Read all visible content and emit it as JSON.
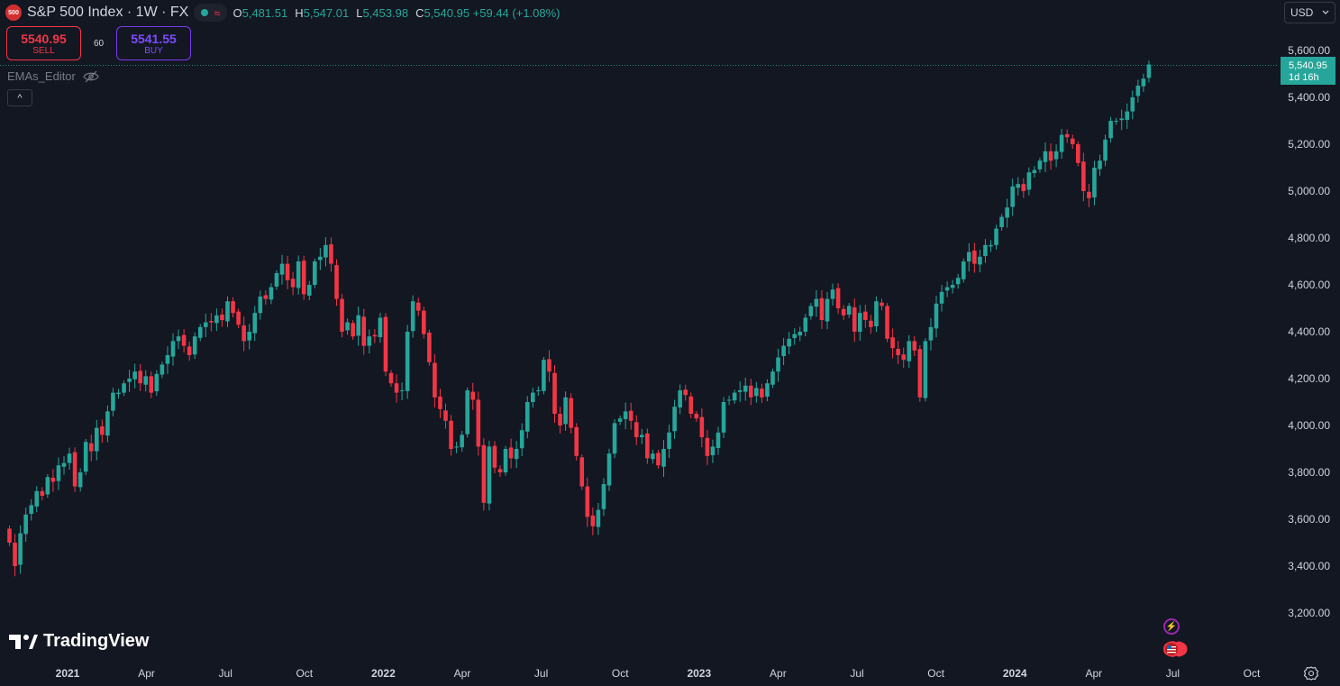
{
  "header": {
    "symbol_badge": "500",
    "title": "S&P 500 Index · 1W · FX",
    "approx_icon": "≈",
    "ohlc": [
      {
        "k": "O",
        "v": "5,481.51"
      },
      {
        "k": "H",
        "v": "5,547.01"
      },
      {
        "k": "L",
        "v": "5,453.98"
      },
      {
        "k": "C",
        "v": "5,540.95 +59.44 (+1.08%)"
      }
    ]
  },
  "trade": {
    "sell_price": "5540.95",
    "sell_label": "SELL",
    "spread": "60",
    "buy_price": "5541.55",
    "buy_label": "BUY"
  },
  "indicator": {
    "name": "EMAs_Editor",
    "collapse_icon": "^"
  },
  "currency": {
    "value": "USD",
    "icon": "chevron-down-icon"
  },
  "brand": {
    "name": "TradingView"
  },
  "colors": {
    "up": "#26a69a",
    "down": "#f23645",
    "bg": "#131722",
    "axis_text": "#d1d4dc"
  },
  "chart_data": {
    "type": "candlestick",
    "title": "S&P 500 Index",
    "interval": "1W",
    "ylim": [
      3100,
      5690
    ],
    "y_ticks": [
      "5,600.00",
      "5,400.00",
      "5,200.00",
      "5,000.00",
      "4,800.00",
      "4,600.00",
      "4,400.00",
      "4,200.00",
      "4,000.00",
      "3,800.00",
      "3,600.00",
      "3,400.00",
      "3,200.00"
    ],
    "x_ticks": [
      "2021",
      "Apr",
      "Jul",
      "Oct",
      "2022",
      "Apr",
      "Jul",
      "Oct",
      "2023",
      "Apr",
      "Jul",
      "Oct",
      "2024",
      "Apr",
      "Jul",
      "Oct"
    ],
    "last_price": "5,540.95",
    "countdown": "1d 16h",
    "closes": [
      3500,
      3400,
      3540,
      3620,
      3660,
      3720,
      3700,
      3780,
      3760,
      3830,
      3840,
      3880,
      3740,
      3800,
      3930,
      3890,
      3990,
      3960,
      4060,
      4140,
      4140,
      4180,
      4200,
      4230,
      4180,
      4210,
      4140,
      4220,
      4260,
      4300,
      4360,
      4380,
      4340,
      4300,
      4380,
      4420,
      4440,
      4440,
      4470,
      4450,
      4530,
      4480,
      4430,
      4360,
      4400,
      4480,
      4550,
      4540,
      4590,
      4650,
      4690,
      4620,
      4590,
      4700,
      4560,
      4600,
      4700,
      4720,
      4770,
      4690,
      4540,
      4400,
      4440,
      4380,
      4470,
      4340,
      4380,
      4380,
      4460,
      4230,
      4180,
      4140,
      4150,
      4400,
      4530,
      4490,
      4390,
      4270,
      4120,
      4070,
      4020,
      3900,
      3910,
      3960,
      4150,
      4110,
      3910,
      3670,
      3910,
      3820,
      3800,
      3900,
      3860,
      3900,
      3980,
      4100,
      4140,
      4150,
      4280,
      4230,
      4050,
      4000,
      4120,
      3990,
      3870,
      3740,
      3610,
      3570,
      3640,
      3750,
      3880,
      4010,
      4030,
      4060,
      4020,
      3950,
      3960,
      3860,
      3880,
      3830,
      3900,
      3970,
      4080,
      4150,
      4130,
      4050,
      4030,
      3950,
      3870,
      3910,
      3970,
      4100,
      4110,
      4140,
      4150,
      4170,
      4120,
      4160,
      4120,
      4180,
      4230,
      4290,
      4340,
      4370,
      4390,
      4400,
      4460,
      4510,
      4540,
      4450,
      4540,
      4580,
      4500,
      4470,
      4510,
      4400,
      4480,
      4450,
      4420,
      4530,
      4510,
      4370,
      4330,
      4300,
      4280,
      4360,
      4320,
      4120,
      4360,
      4420,
      4520,
      4570,
      4590,
      4600,
      4630,
      4700,
      4740,
      4690,
      4720,
      4770,
      4770,
      4840,
      4890,
      4930,
      5020,
      5030,
      5000,
      5080,
      5090,
      5130,
      5170,
      5130,
      5170,
      5240,
      5230,
      5200,
      5120,
      5000,
      4970,
      5100,
      5130,
      5220,
      5300,
      5300,
      5310,
      5340,
      5400,
      5450,
      5480,
      5540
    ]
  }
}
